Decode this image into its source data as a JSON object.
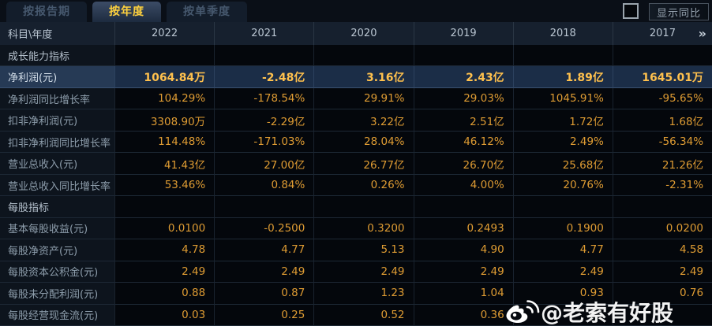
{
  "tabs": [
    {
      "label": "按报告期",
      "active": false
    },
    {
      "label": "按年度",
      "active": true
    },
    {
      "label": "按单季度",
      "active": false
    }
  ],
  "controls": {
    "show_yoy_label": "显示同比",
    "checkbox_checked": false
  },
  "colors": {
    "value_gold": "#df9c33",
    "highlight_gold": "#ffc14d",
    "tab_active_text": "#ffd23e",
    "highlight_row_bg": "#1b2d47"
  },
  "table": {
    "corner_label": "科目\\年度",
    "years": [
      "2022",
      "2021",
      "2020",
      "2019",
      "2018",
      "2017"
    ],
    "more_icon": "»",
    "rows": [
      {
        "type": "section",
        "highlight": false,
        "label": "成长能力指标",
        "values": [
          "",
          "",
          "",
          "",
          "",
          ""
        ]
      },
      {
        "type": "data",
        "highlight": true,
        "label": "净利润(元)",
        "values": [
          "1064.84万",
          "-2.48亿",
          "3.16亿",
          "2.43亿",
          "1.89亿",
          "1645.01万"
        ]
      },
      {
        "type": "data",
        "highlight": false,
        "label": "净利润同比增长率",
        "values": [
          "104.29%",
          "-178.54%",
          "29.91%",
          "29.03%",
          "1045.91%",
          "-95.65%"
        ]
      },
      {
        "type": "data",
        "highlight": false,
        "label": "扣非净利润(元)",
        "values": [
          "3308.90万",
          "-2.29亿",
          "3.22亿",
          "2.51亿",
          "1.72亿",
          "1.68亿"
        ]
      },
      {
        "type": "data",
        "highlight": false,
        "label": "扣非净利润同比增长率",
        "values": [
          "114.48%",
          "-171.03%",
          "28.04%",
          "46.12%",
          "2.49%",
          "-56.34%"
        ]
      },
      {
        "type": "data",
        "highlight": false,
        "label": "营业总收入(元)",
        "values": [
          "41.43亿",
          "27.00亿",
          "26.77亿",
          "26.70亿",
          "25.68亿",
          "21.26亿"
        ]
      },
      {
        "type": "data",
        "highlight": false,
        "label": "营业总收入同比增长率",
        "values": [
          "53.46%",
          "0.84%",
          "0.26%",
          "4.00%",
          "20.76%",
          "-2.31%"
        ]
      },
      {
        "type": "section",
        "highlight": false,
        "label": "每股指标",
        "values": [
          "",
          "",
          "",
          "",
          "",
          ""
        ]
      },
      {
        "type": "data",
        "highlight": false,
        "label": "基本每股收益(元)",
        "values": [
          "0.0100",
          "-0.2500",
          "0.3200",
          "0.2493",
          "0.1900",
          "0.0200"
        ]
      },
      {
        "type": "data",
        "highlight": false,
        "label": "每股净资产(元)",
        "values": [
          "4.78",
          "4.77",
          "5.13",
          "4.90",
          "4.77",
          "4.58"
        ]
      },
      {
        "type": "data",
        "highlight": false,
        "label": "每股资本公积金(元)",
        "values": [
          "2.49",
          "2.49",
          "2.49",
          "2.49",
          "2.49",
          "2.49"
        ]
      },
      {
        "type": "data",
        "highlight": false,
        "label": "每股未分配利润(元)",
        "values": [
          "0.88",
          "0.87",
          "1.23",
          "1.04",
          "0.93",
          "0.76"
        ]
      },
      {
        "type": "data",
        "highlight": false,
        "label": "每股经营现金流(元)",
        "values": [
          "0.03",
          "0.25",
          "0.52",
          "0.36",
          "",
          ""
        ]
      }
    ]
  },
  "watermark": {
    "text": "@老索有好股"
  }
}
